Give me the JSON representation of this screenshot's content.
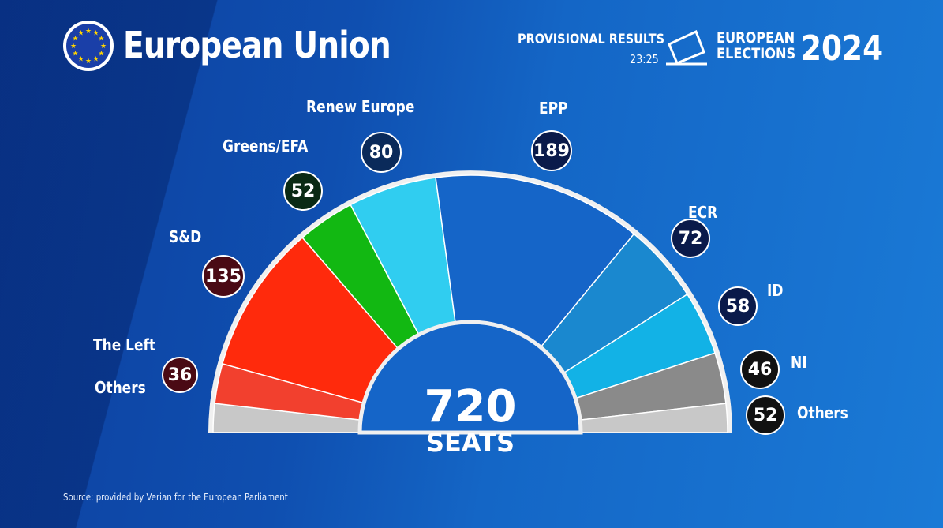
{
  "header": {
    "title": "European Union",
    "provisional": "PROVISIONAL RESULTS",
    "time": "23:25",
    "elections_line1": "EUROPEAN",
    "elections_line2": "ELECTIONS",
    "year": "2024"
  },
  "source": "Source: provided by Verian for the European Parliament",
  "chart_data": {
    "type": "hemicycle",
    "total": 720,
    "total_label": "720",
    "total_unit": "SEATS",
    "parties": [
      {
        "name": "The Left",
        "seats": 36,
        "seats_label": "36",
        "color": "#f2402e"
      },
      {
        "name": "S&D",
        "seats": 135,
        "seats_label": "135",
        "color": "#ff2a0c"
      },
      {
        "name": "Greens/EFA",
        "seats": 52,
        "seats_label": "52",
        "color": "#12b812"
      },
      {
        "name": "Renew Europe",
        "seats": 80,
        "seats_label": "80",
        "color": "#30cdf0"
      },
      {
        "name": "EPP",
        "seats": 189,
        "seats_label": "189",
        "color": "#1565c8"
      },
      {
        "name": "ECR",
        "seats": 72,
        "seats_label": "72",
        "color": "#1a88cf"
      },
      {
        "name": "ID",
        "seats": 58,
        "seats_label": "58",
        "color": "#12b2e6"
      },
      {
        "name": "NI",
        "seats": 46,
        "seats_label": "46",
        "color": "#8a8a8a"
      },
      {
        "name": "Others",
        "seats": 52,
        "seats_label": "52",
        "color": "#c8c8c8"
      }
    ],
    "left_others_label": "Others"
  }
}
